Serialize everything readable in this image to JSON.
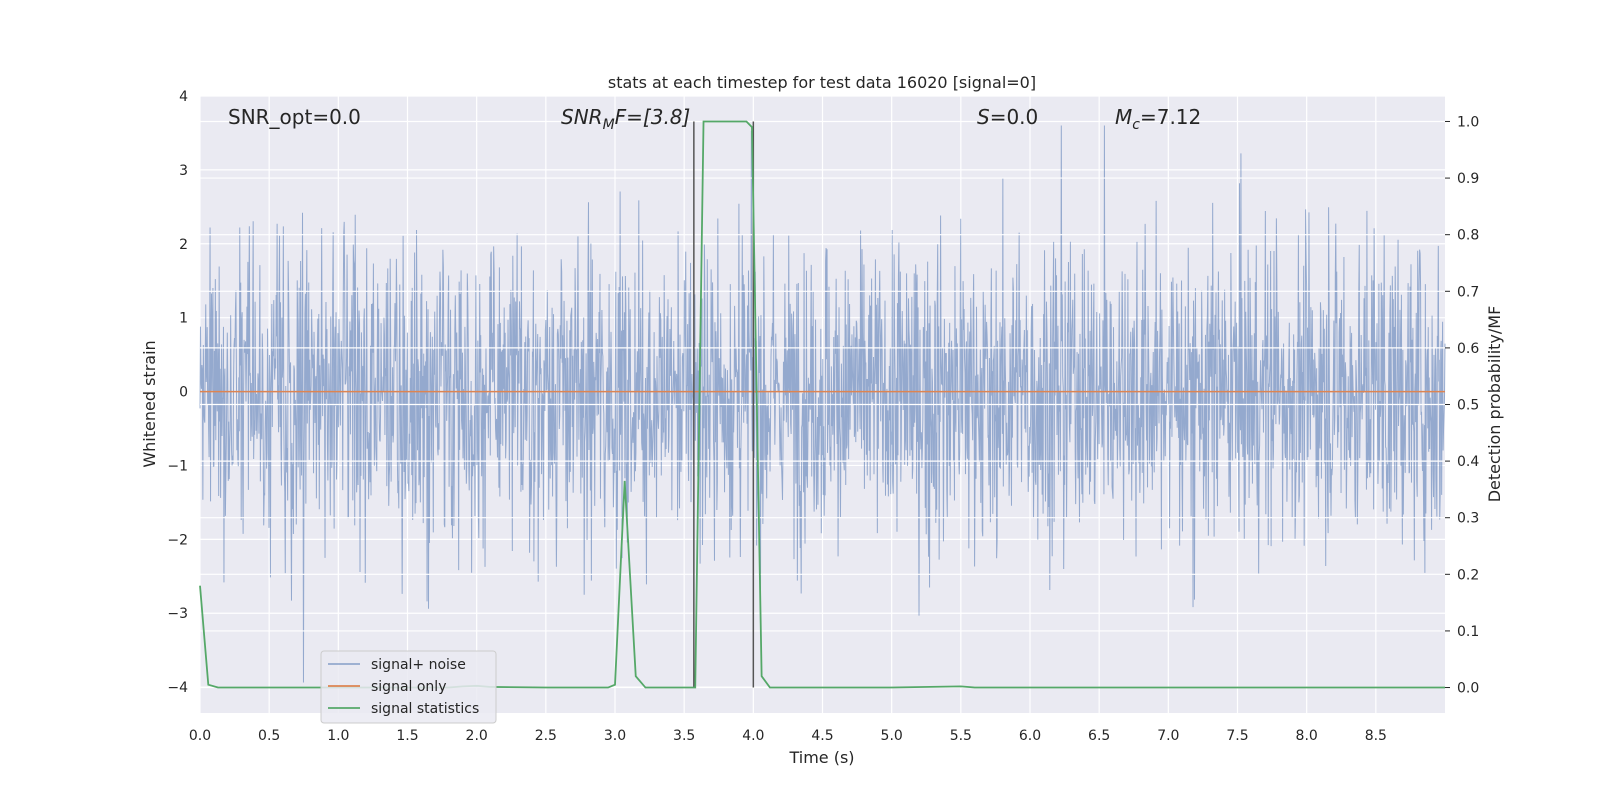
{
  "chart_data": {
    "type": "line",
    "title": "stats at each timestep for test data 16020 [signal=0]",
    "xlabel": "Time (s)",
    "ylabel_left": "Whitened strain",
    "ylabel_right": "Detection probability/MF",
    "xlim": [
      0.0,
      9.0
    ],
    "ylim_left": [
      -4.35,
      4.0
    ],
    "ylim_right": [
      -0.045,
      1.045
    ],
    "x_ticks": [
      "0.0",
      "0.5",
      "1.0",
      "1.5",
      "2.0",
      "2.5",
      "3.0",
      "3.5",
      "4.0",
      "4.5",
      "5.0",
      "5.5",
      "6.0",
      "6.5",
      "7.0",
      "7.5",
      "8.0",
      "8.5"
    ],
    "y_ticks_left": [
      "4",
      "3",
      "2",
      "1",
      "0",
      "−1",
      "−2",
      "−3",
      "−4"
    ],
    "y_ticks_right": [
      "1.0",
      "0.9",
      "0.8",
      "0.7",
      "0.6",
      "0.5",
      "0.4",
      "0.3",
      "0.2",
      "0.1",
      "0.0"
    ],
    "grid": true,
    "legend_placement": "lower-left",
    "annotations": {
      "snr_opt": "SNR_opt=0.0",
      "snr_mf_main": "SNR",
      "snr_mf_sub": "M",
      "snr_mf_rest": "F=[3.8]",
      "s_main": "S",
      "s_rest": "=0.0",
      "mc_main": "M",
      "mc_sub": "c",
      "mc_rest": "=7.12"
    },
    "series": [
      {
        "name": "signal+ noise",
        "color": "#4c72b0",
        "axis": "left",
        "description_values": "noise band roughly between -2.2 and 2.2 with spikes up to about 3.6 and down to about -4.0"
      },
      {
        "name": "signal only",
        "color": "#dd8452",
        "axis": "left",
        "x": [
          0.0,
          9.0
        ],
        "y": [
          0.0,
          0.0
        ]
      },
      {
        "name": "signal statistics",
        "color": "#55a868",
        "axis": "right",
        "x": [
          0.0,
          0.06,
          0.13,
          0.3,
          0.5,
          1.0,
          1.5,
          1.8,
          1.9,
          2.0,
          2.1,
          2.5,
          2.95,
          3.0,
          3.07,
          3.15,
          3.22,
          3.3,
          3.5,
          3.58,
          3.64,
          3.7,
          3.95,
          3.99,
          4.06,
          4.12,
          4.2,
          4.5,
          5.0,
          5.5,
          5.6,
          6.0,
          7.0,
          8.0,
          9.0
        ],
        "y": [
          0.18,
          0.005,
          0.0,
          0.0,
          0.0,
          0.0,
          0.0,
          0.0,
          0.002,
          0.003,
          0.001,
          0.0,
          0.0,
          0.005,
          0.365,
          0.02,
          0.0,
          0.0,
          0.0,
          0.0,
          1.0,
          1.0,
          1.0,
          0.99,
          0.02,
          0.0,
          0.0,
          0.0,
          0.0,
          0.002,
          0.0,
          0.0,
          0.0,
          0.0,
          0.0
        ]
      }
    ],
    "vlines": [
      {
        "x": 3.57,
        "color": "#555555"
      },
      {
        "x": 4.0,
        "color": "#555555"
      }
    ]
  }
}
